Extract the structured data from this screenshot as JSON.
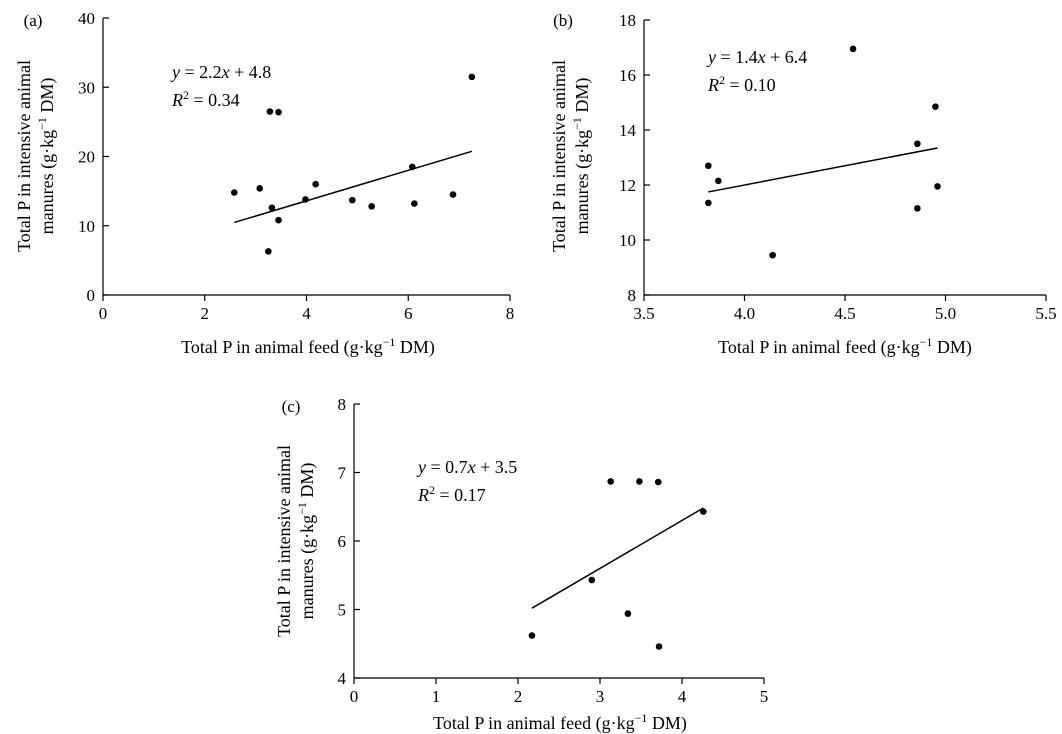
{
  "chart_data": [
    {
      "type": "scatter",
      "panel_label": "(a)",
      "xlabel_pre": "Total P in animal feed (g·kg",
      "xlabel_sup": "−1",
      "xlabel_post": " DM)",
      "ylabel_line1": "Total P in intensive animal",
      "ylabel_pre": "manures (g·kg",
      "ylabel_sup": "−1",
      "ylabel_post": " DM)",
      "xlim": [
        0,
        8
      ],
      "ylim": [
        0,
        40
      ],
      "xticks": [
        0,
        2,
        4,
        6,
        8
      ],
      "yticks": [
        0,
        10,
        20,
        30,
        40
      ],
      "points": [
        [
          2.58,
          14.8
        ],
        [
          3.08,
          15.4
        ],
        [
          3.25,
          6.3
        ],
        [
          3.28,
          26.5
        ],
        [
          3.32,
          12.6
        ],
        [
          3.45,
          26.4
        ],
        [
          3.45,
          10.8
        ],
        [
          3.98,
          13.8
        ],
        [
          4.18,
          16.0
        ],
        [
          4.9,
          13.7
        ],
        [
          5.28,
          12.8
        ],
        [
          6.08,
          18.5
        ],
        [
          6.12,
          13.2
        ],
        [
          6.88,
          14.5
        ],
        [
          7.25,
          31.5
        ]
      ],
      "fit": {
        "slope": 2.2,
        "intercept": 4.8,
        "x_range": [
          2.58,
          7.25
        ]
      },
      "equation": {
        "lhs": "y",
        "mid": " = 2.2",
        "var": "x",
        "rest": " + 4.8"
      },
      "r2": {
        "base": "R",
        "sup": "2",
        "rest": " = 0.34"
      }
    },
    {
      "type": "scatter",
      "panel_label": "(b)",
      "xlabel_pre": "Total P in animal feed (g·kg",
      "xlabel_sup": "−1",
      "xlabel_post": " DM)",
      "ylabel_line1": "Total P in intensive animal",
      "ylabel_pre": "manures (g·kg",
      "ylabel_sup": "−1",
      "ylabel_post": " DM)",
      "xlim": [
        3.5,
        5.5
      ],
      "ylim": [
        8,
        18
      ],
      "xticks": [
        3.5,
        4.0,
        4.5,
        5.0,
        5.5
      ],
      "xtick_labels": [
        "3.5",
        "4.0",
        "4.5",
        "5.0",
        "5.5"
      ],
      "yticks": [
        8,
        10,
        12,
        14,
        16,
        18
      ],
      "points": [
        [
          3.82,
          12.7
        ],
        [
          3.82,
          11.35
        ],
        [
          3.87,
          12.15
        ],
        [
          4.14,
          9.45
        ],
        [
          4.54,
          16.95
        ],
        [
          4.86,
          13.5
        ],
        [
          4.86,
          11.15
        ],
        [
          4.95,
          14.85
        ],
        [
          4.96,
          11.95
        ]
      ],
      "fit": {
        "slope": 1.4,
        "intercept": 6.4,
        "x_range": [
          3.82,
          4.96
        ]
      },
      "equation": {
        "lhs": "y",
        "mid": " = 1.4",
        "var": "x",
        "rest": " + 6.4"
      },
      "r2": {
        "base": "R",
        "sup": "2",
        "rest": " = 0.10"
      }
    },
    {
      "type": "scatter",
      "panel_label": "(c)",
      "xlabel_pre": "Total P in animal feed (g·kg",
      "xlabel_sup": "−1",
      "xlabel_post": " DM)",
      "ylabel_line1": "Total P in intensive animal",
      "ylabel_pre": "manures (g·kg",
      "ylabel_sup": "−1",
      "ylabel_post": " DM)",
      "xlim": [
        0,
        5
      ],
      "ylim": [
        4,
        8
      ],
      "xticks": [
        0,
        1,
        2,
        3,
        4,
        5
      ],
      "yticks": [
        4,
        5,
        6,
        7,
        8
      ],
      "points": [
        [
          2.17,
          4.62
        ],
        [
          2.9,
          5.43
        ],
        [
          3.13,
          6.87
        ],
        [
          3.34,
          4.94
        ],
        [
          3.48,
          6.87
        ],
        [
          3.71,
          6.86
        ],
        [
          3.72,
          4.46
        ],
        [
          4.26,
          6.43
        ]
      ],
      "fit": {
        "slope": 0.7,
        "intercept": 3.5,
        "x_range": [
          2.17,
          4.26
        ]
      },
      "equation": {
        "lhs": "y",
        "mid": " = 0.7",
        "var": "x",
        "rest": " + 3.5"
      },
      "r2": {
        "base": "R",
        "sup": "2",
        "rest": " = 0.17"
      }
    }
  ]
}
